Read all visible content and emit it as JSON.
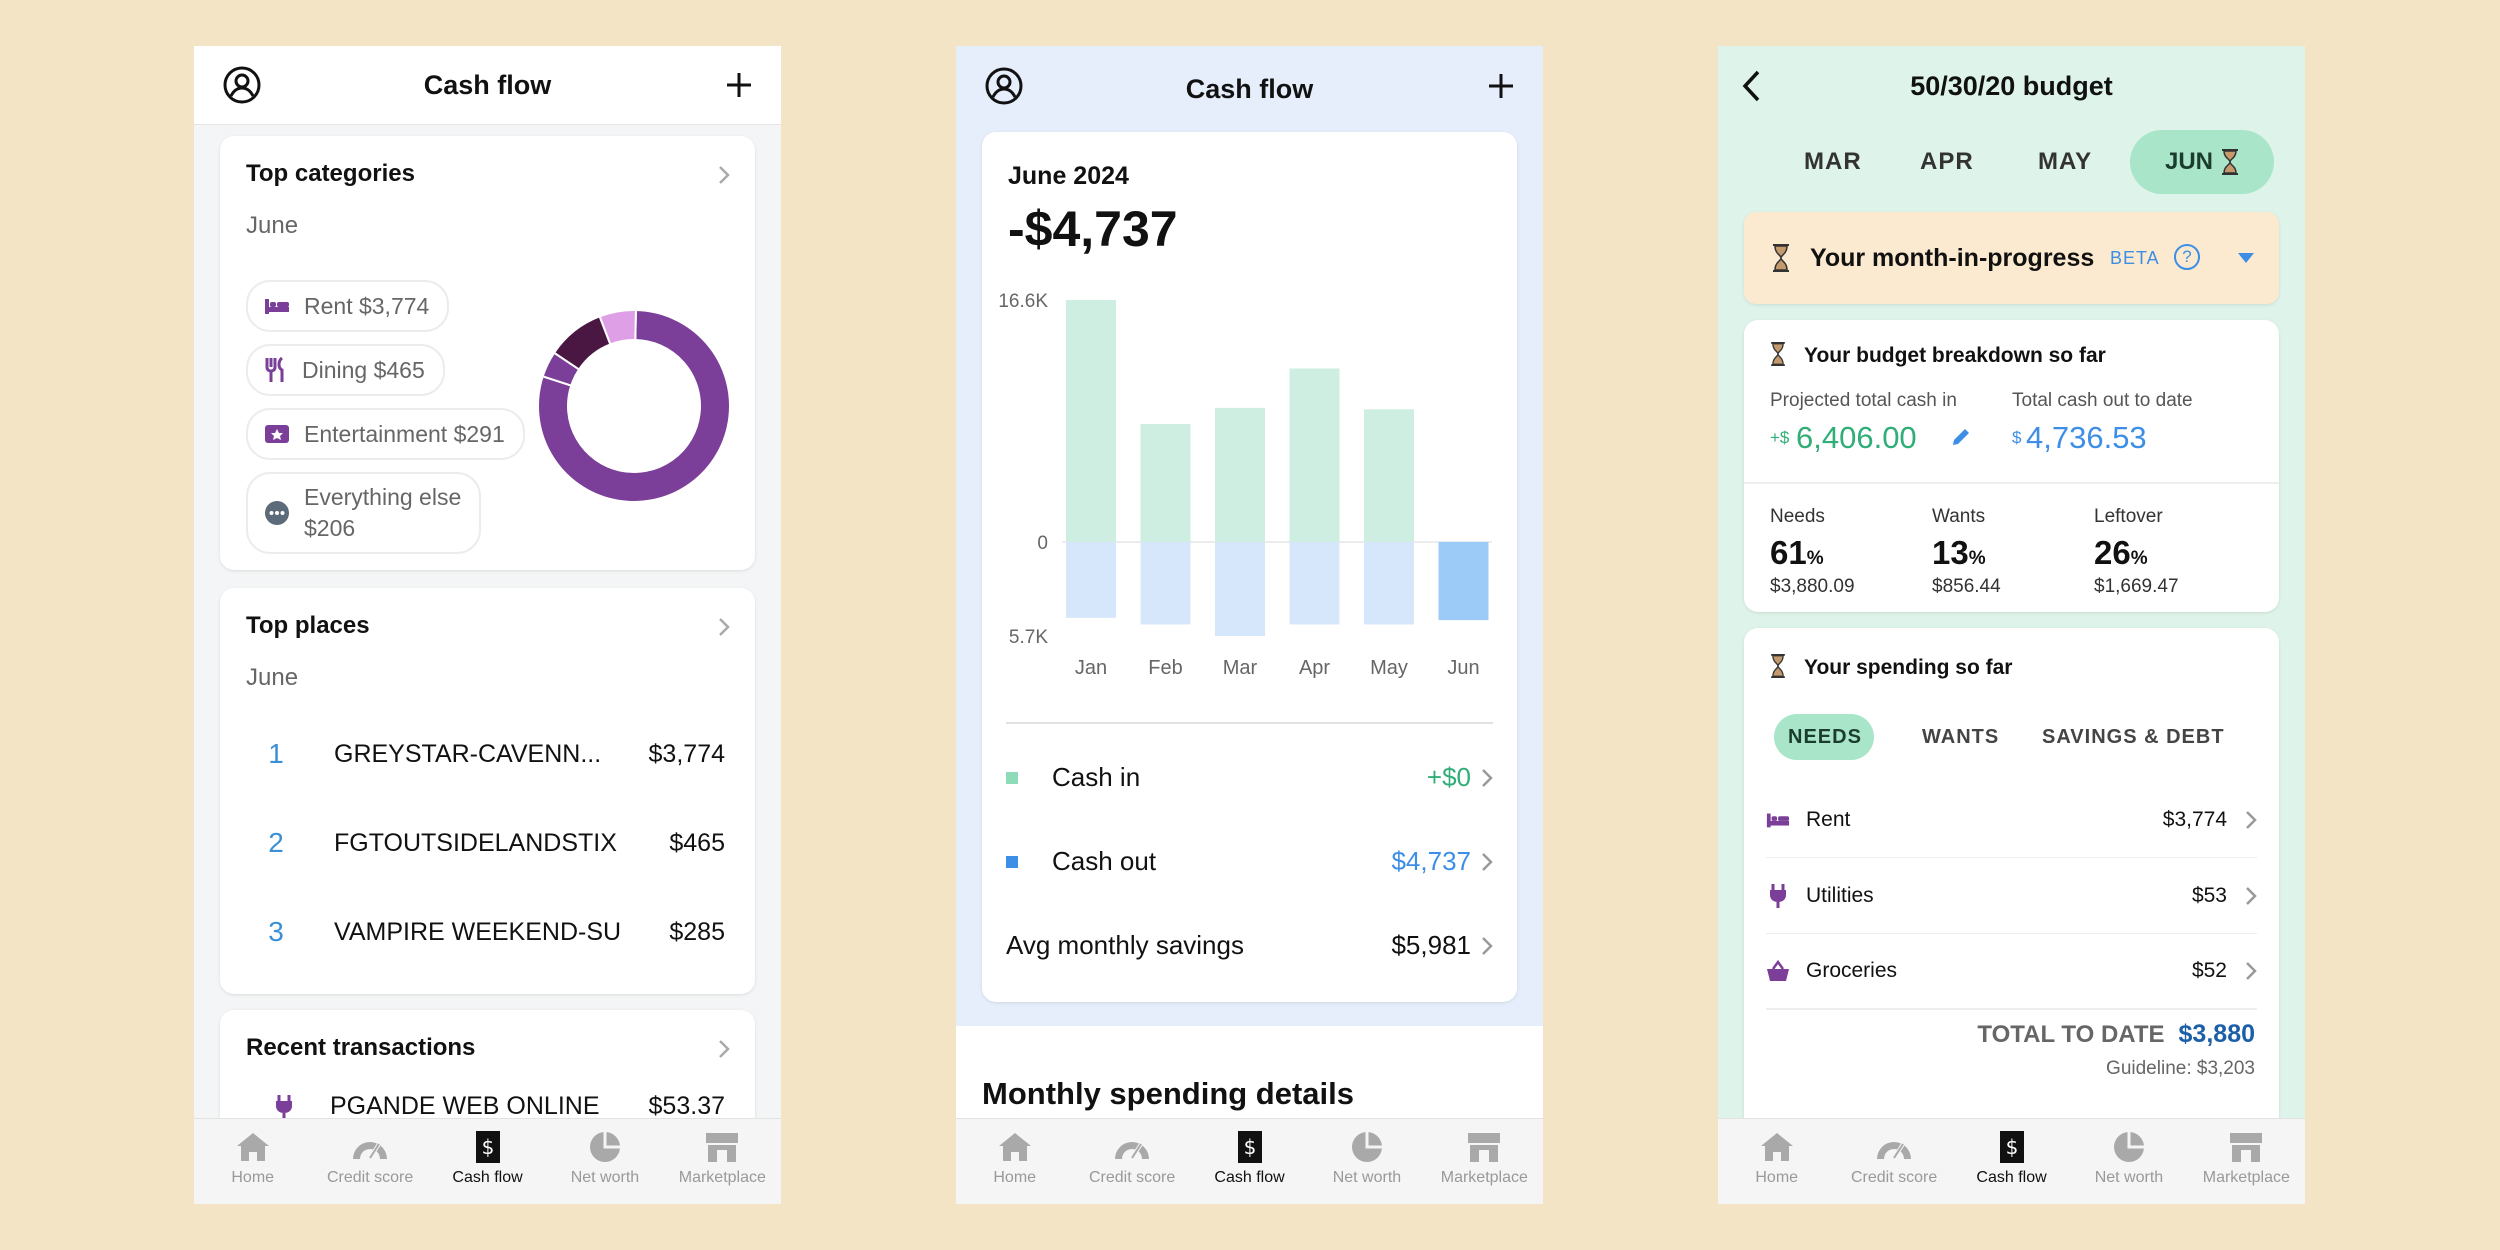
{
  "tabbar": [
    {
      "label": "Home",
      "icon": "home-icon"
    },
    {
      "label": "Credit score",
      "icon": "gauge-icon"
    },
    {
      "label": "Cash flow",
      "icon": "cash-flow-icon"
    },
    {
      "label": "Net worth",
      "icon": "pie-icon"
    },
    {
      "label": "Marketplace",
      "icon": "store-icon"
    }
  ],
  "screen1": {
    "title": "Cash flow",
    "top_categories": {
      "title": "Top categories",
      "month": "June",
      "items": [
        {
          "label": "Rent $3,774",
          "icon": "bed-icon"
        },
        {
          "label": "Dining $465",
          "icon": "fork-knife-icon"
        },
        {
          "label": "Entertainment $291",
          "icon": "ticket-icon"
        },
        {
          "label": "Everything else",
          "label2": "$206",
          "icon": "more-icon"
        }
      ],
      "donut": [
        {
          "name": "Rent",
          "value": 3774,
          "color": "#7b3f99"
        },
        {
          "name": "Dining",
          "value": 465,
          "color": "#4a1743"
        },
        {
          "name": "Entertainment",
          "value": 291,
          "color": "#df9fe6"
        },
        {
          "name": "Everything else",
          "value": 206,
          "color": "#7b3f99"
        }
      ]
    },
    "top_places": {
      "title": "Top places",
      "month": "June",
      "items": [
        {
          "rank": "1",
          "name": "GREYSTAR-CAVENN...",
          "amount": "$3,774"
        },
        {
          "rank": "2",
          "name": "FGTOUTSIDELANDSTIX",
          "amount": "$465"
        },
        {
          "rank": "3",
          "name": "VAMPIRE WEEKEND-SU",
          "amount": "$285"
        }
      ]
    },
    "recent": {
      "title": "Recent transactions",
      "name": "PGANDE WEB ONLINE",
      "amount": "$53.37"
    }
  },
  "screen2": {
    "title": "Cash flow",
    "period": "June 2024",
    "total": "-$4,737",
    "chart_data": {
      "type": "bar",
      "categories": [
        "Jan",
        "Feb",
        "Mar",
        "Apr",
        "May",
        "Jun"
      ],
      "series": [
        {
          "name": "Cash in",
          "values": [
            16600,
            8100,
            9200,
            11900,
            9100,
            0
          ]
        },
        {
          "name": "Cash out",
          "values": [
            -4600,
            -5000,
            -5700,
            -5000,
            -5000,
            -4737
          ]
        }
      ],
      "ylim": [
        -5700,
        16600
      ],
      "ytick_labels": [
        "16.6K",
        "0",
        "5.7K"
      ],
      "colors": {
        "cash_in": "#cdeee0",
        "cash_out": "#d7e7fb",
        "cash_out_current": "#9ccbf7"
      }
    },
    "cash_in": {
      "label": "Cash in",
      "value": "+$0",
      "color": "#8ddbb9"
    },
    "cash_out": {
      "label": "Cash out",
      "value": "$4,737",
      "color": "#3d8ee6"
    },
    "avg": {
      "label": "Avg monthly savings",
      "value": "$5,981"
    },
    "section": "Monthly spending details"
  },
  "screen3": {
    "title": "50/30/20 budget",
    "months": [
      "MAR",
      "APR",
      "MAY",
      "JUN"
    ],
    "selected_month": "JUN",
    "banner": {
      "text": "Your month-in-progress",
      "beta": "BETA",
      "help": "?"
    },
    "breakdown": {
      "title": "Your budget breakdown so far",
      "proj_label": "Projected total cash in",
      "proj_prefix": "+$",
      "proj_value": "6,406.00",
      "out_label": "Total cash out to date",
      "out_prefix": "$",
      "out_value": "4,736.53",
      "cols": [
        {
          "label": "Needs",
          "pct": "61",
          "amt": "$3,880.09"
        },
        {
          "label": "Wants",
          "pct": "13",
          "amt": "$856.44"
        },
        {
          "label": "Leftover",
          "pct": "26",
          "amt": "$1,669.47"
        }
      ],
      "pct_sign": "%"
    },
    "spending": {
      "title": "Your spending so far",
      "tabs": [
        "NEEDS",
        "WANTS",
        "SAVINGS & DEBT"
      ],
      "items": [
        {
          "name": "Rent",
          "amount": "$3,774",
          "icon": "bed-icon"
        },
        {
          "name": "Utilities",
          "amount": "$53",
          "icon": "plug-icon"
        },
        {
          "name": "Groceries",
          "amount": "$52",
          "icon": "basket-icon"
        }
      ],
      "total_label": "TOTAL TO DATE",
      "total_value": "$3,880",
      "guideline": "Guideline: $3,203"
    }
  }
}
